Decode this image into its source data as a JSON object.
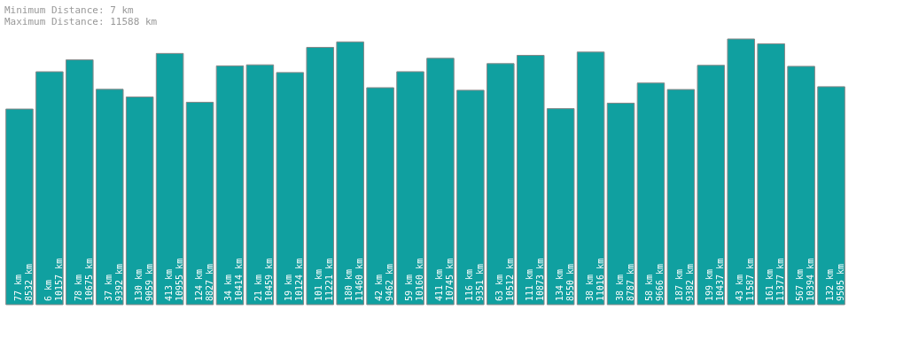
{
  "chart_data": {
    "type": "bar",
    "annotations": [
      "Minimum Distance:      7 km",
      "Maximum Distance: 11588 km"
    ],
    "categories": [
      null,
      null,
      null,
      null,
      null,
      null,
      null,
      null,
      null,
      null,
      null,
      null,
      null,
      null,
      null,
      null,
      null,
      null,
      null,
      null,
      null,
      null,
      null,
      null,
      null,
      null,
      null,
      null
    ],
    "values": [
      8532,
      10157,
      10675,
      9392,
      9059,
      10955,
      8827,
      10414,
      10459,
      10124,
      11221,
      11460,
      9462,
      10160,
      10745,
      9351,
      10512,
      10873,
      8550,
      11016,
      8787,
      9666,
      9382,
      10437,
      11587,
      11377,
      10394,
      9505
    ],
    "value_labels": [
      "77 km\n8532 km",
      "6 km\n10157 km",
      "78 km\n10675 km",
      "37 km\n9392 km",
      "130 km\n9059 km",
      "413 km\n10955 km",
      "124 km\n8827 km",
      "34 km\n10414 km",
      "21 km\n10459 km",
      "19 km\n10124 km",
      "101 km\n11221 km",
      "180 km\n11460 km",
      "42 km\n9462 km",
      "59 km\n10160 km",
      "411 km\n10745 km",
      "116 km\n9351 km",
      "63 km\n10512 km",
      "111 km\n10873 km",
      "134 km\n8550 km",
      "38 km\n11016 km",
      "38 km\n8787 km",
      "58 km\n9666 km",
      "187 km\n9382 km",
      "199 km\n10437 km",
      "43 km\n11587 km",
      "161 km\n11377 km",
      "567 km\n10394 km",
      "132 km\n9505 km"
    ],
    "color": "#10a0a0"
  }
}
